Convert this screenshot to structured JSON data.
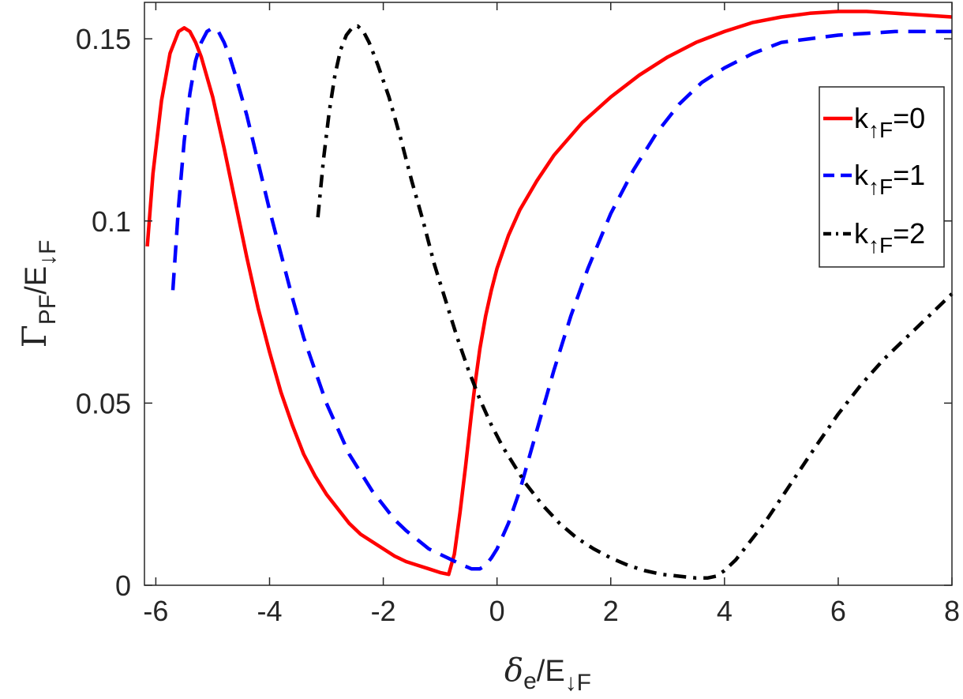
{
  "chart_data": {
    "type": "line",
    "xlabel": {
      "main": "δ",
      "sub1": "e",
      "mid": "/E",
      "sub2": "↓F"
    },
    "ylabel": {
      "main": "Γ",
      "sub1": "PF",
      "mid": "/E",
      "sub2": "↓F"
    },
    "xlim": [
      -6.2,
      8
    ],
    "ylim": [
      0,
      0.16
    ],
    "x_ticks": [
      -6,
      -4,
      -2,
      0,
      2,
      4,
      6,
      8
    ],
    "x_tick_labels": [
      "-6",
      "-4",
      "-2",
      "0",
      "2",
      "4",
      "6",
      "8"
    ],
    "y_ticks": [
      0,
      0.05,
      0.1,
      0.15
    ],
    "y_tick_labels": [
      "0",
      "0.05",
      "0.1",
      "0.15"
    ],
    "grid": false,
    "legend_placement": "right",
    "series": [
      {
        "name": "k↑F=0",
        "legend": {
          "pre": "k",
          "sub": "↑F",
          "post": "=0"
        },
        "color": "#ff0000",
        "style": "solid",
        "x": [
          -6.15,
          -6.05,
          -5.9,
          -5.75,
          -5.6,
          -5.5,
          -5.4,
          -5.3,
          -5.2,
          -5.0,
          -4.8,
          -4.6,
          -4.4,
          -4.2,
          -4.0,
          -3.8,
          -3.6,
          -3.4,
          -3.2,
          -3.0,
          -2.8,
          -2.6,
          -2.4,
          -2.2,
          -2.0,
          -1.8,
          -1.6,
          -1.4,
          -1.2,
          -1.0,
          -0.85,
          -0.75,
          -0.65,
          -0.55,
          -0.45,
          -0.38,
          -0.3,
          -0.2,
          -0.1,
          0.0,
          0.2,
          0.4,
          0.7,
          1.0,
          1.5,
          2.0,
          2.5,
          3.0,
          3.5,
          4.0,
          4.5,
          5.0,
          5.5,
          6.0,
          6.5,
          7.0,
          7.5,
          8.0
        ],
        "y": [
          0.093,
          0.113,
          0.133,
          0.146,
          0.152,
          0.153,
          0.152,
          0.149,
          0.145,
          0.134,
          0.12,
          0.105,
          0.09,
          0.076,
          0.064,
          0.053,
          0.044,
          0.036,
          0.03,
          0.025,
          0.021,
          0.017,
          0.014,
          0.012,
          0.01,
          0.008,
          0.0065,
          0.0055,
          0.0045,
          0.0035,
          0.003,
          0.0085,
          0.02,
          0.033,
          0.047,
          0.056,
          0.065,
          0.074,
          0.081,
          0.087,
          0.096,
          0.103,
          0.111,
          0.118,
          0.127,
          0.134,
          0.14,
          0.145,
          0.149,
          0.152,
          0.1545,
          0.156,
          0.157,
          0.1575,
          0.1575,
          0.157,
          0.1565,
          0.156
        ]
      },
      {
        "name": "k↑F=1",
        "legend": {
          "pre": "k",
          "sub": "↑F",
          "post": "=1"
        },
        "color": "#0000ff",
        "style": "dashed",
        "x": [
          -5.7,
          -5.6,
          -5.5,
          -5.4,
          -5.3,
          -5.2,
          -5.1,
          -5.0,
          -4.9,
          -4.8,
          -4.7,
          -4.6,
          -4.4,
          -4.2,
          -4.0,
          -3.8,
          -3.6,
          -3.4,
          -3.2,
          -3.0,
          -2.8,
          -2.6,
          -2.4,
          -2.2,
          -2.0,
          -1.8,
          -1.6,
          -1.4,
          -1.2,
          -1.0,
          -0.8,
          -0.6,
          -0.45,
          -0.3,
          -0.2,
          -0.1,
          0.0,
          0.2,
          0.4,
          0.6,
          0.8,
          1.0,
          1.3,
          1.6,
          2.0,
          2.4,
          2.8,
          3.2,
          3.6,
          4.0,
          4.5,
          5.0,
          5.5,
          6.0,
          6.5,
          7.0,
          7.5,
          8.0
        ],
        "y": [
          0.081,
          0.104,
          0.122,
          0.135,
          0.144,
          0.149,
          0.152,
          0.153,
          0.152,
          0.149,
          0.145,
          0.14,
          0.129,
          0.116,
          0.103,
          0.091,
          0.079,
          0.068,
          0.059,
          0.05,
          0.043,
          0.036,
          0.031,
          0.026,
          0.022,
          0.018,
          0.015,
          0.0125,
          0.01,
          0.0085,
          0.007,
          0.0055,
          0.0045,
          0.0045,
          0.0055,
          0.0075,
          0.01,
          0.017,
          0.026,
          0.037,
          0.048,
          0.059,
          0.074,
          0.087,
          0.102,
          0.114,
          0.124,
          0.132,
          0.138,
          0.142,
          0.146,
          0.149,
          0.15,
          0.151,
          0.1515,
          0.152,
          0.152,
          0.152
        ]
      },
      {
        "name": "k↑F=2",
        "legend": {
          "pre": "k",
          "sub": "↑F",
          "post": "=2"
        },
        "color": "#000000",
        "style": "dashdot",
        "x": [
          -3.15,
          -3.05,
          -2.95,
          -2.85,
          -2.75,
          -2.65,
          -2.55,
          -2.45,
          -2.35,
          -2.25,
          -2.1,
          -1.9,
          -1.7,
          -1.5,
          -1.3,
          -1.1,
          -0.9,
          -0.7,
          -0.5,
          -0.3,
          -0.1,
          0.1,
          0.3,
          0.5,
          0.8,
          1.1,
          1.4,
          1.7,
          2.0,
          2.3,
          2.6,
          2.9,
          3.2,
          3.5,
          3.7,
          3.85,
          4.0,
          4.2,
          4.4,
          4.7,
          5.0,
          5.3,
          5.6,
          6.0,
          6.4,
          6.8,
          7.2,
          7.6,
          8.0
        ],
        "y": [
          0.101,
          0.117,
          0.13,
          0.14,
          0.147,
          0.151,
          0.153,
          0.1535,
          0.152,
          0.149,
          0.143,
          0.134,
          0.123,
          0.111,
          0.1,
          0.088,
          0.078,
          0.068,
          0.059,
          0.051,
          0.044,
          0.038,
          0.033,
          0.028,
          0.022,
          0.017,
          0.013,
          0.01,
          0.0075,
          0.0055,
          0.004,
          0.003,
          0.0025,
          0.002,
          0.002,
          0.0025,
          0.004,
          0.007,
          0.011,
          0.017,
          0.024,
          0.031,
          0.038,
          0.047,
          0.055,
          0.062,
          0.068,
          0.074,
          0.08
        ]
      }
    ]
  }
}
